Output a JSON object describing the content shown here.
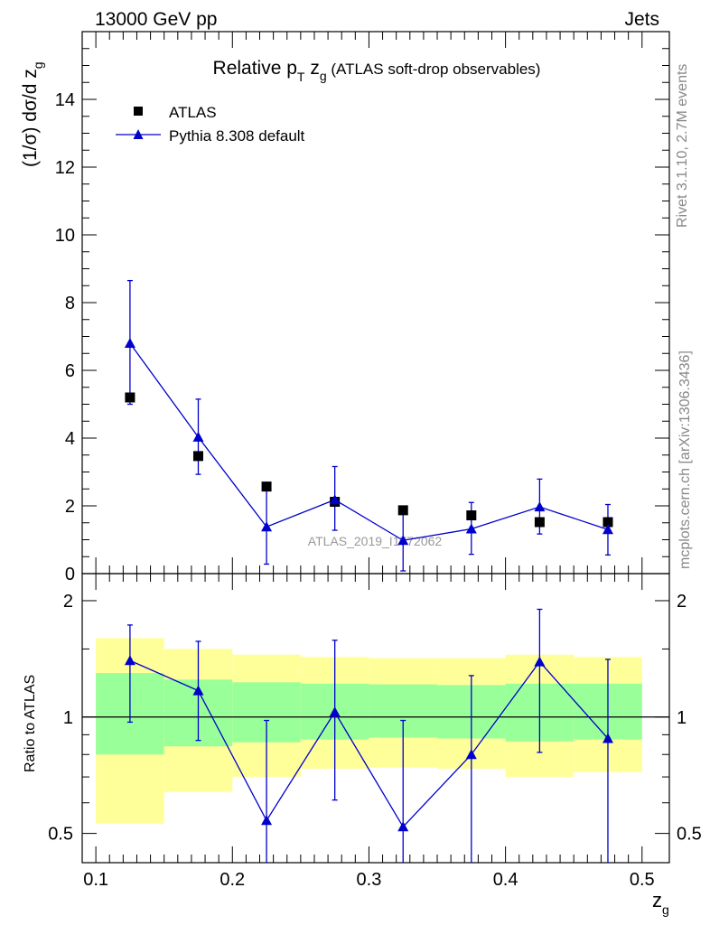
{
  "header": {
    "left": "13000 GeV pp",
    "right": "Jets"
  },
  "sidebar": {
    "rivet": "Rivet 3.1.10,  2.7M events",
    "mcplots": "mcplots.cern.ch [arXiv:1306.3436]"
  },
  "plot_title": {
    "prefix": "Relative p",
    "sub_t": "T",
    "mid": " z",
    "sub_g": "g",
    "suffix": " (ATLAS soft-drop observables)"
  },
  "watermark": "ATLAS_2019_I1772062",
  "colors": {
    "mc": "#0000cc",
    "data": "#000000",
    "band_inner": "#99ff99",
    "band_outer": "#ffff99"
  },
  "chart_data": [
    {
      "type": "scatter",
      "panel": "main",
      "ylabel_parts": [
        "(1/σ) dσ/d z",
        "g"
      ],
      "ylim": [
        0,
        16
      ],
      "xlim": [
        0.09,
        0.52
      ],
      "yticks": [
        0,
        2,
        4,
        6,
        8,
        10,
        12,
        14
      ],
      "legend_position": "top-left",
      "series": [
        {
          "name": "ATLAS",
          "marker": "square",
          "x": [
            0.125,
            0.175,
            0.225,
            0.275,
            0.325,
            0.375,
            0.425,
            0.475
          ],
          "y": [
            5.2,
            3.47,
            2.57,
            2.12,
            1.87,
            1.72,
            1.52,
            1.52
          ]
        },
        {
          "name": "Pythia 8.308 default",
          "marker": "triangle",
          "line": true,
          "x": [
            0.125,
            0.175,
            0.225,
            0.275,
            0.325,
            0.375,
            0.425,
            0.475
          ],
          "y": [
            6.8,
            4.03,
            1.38,
            2.18,
            0.98,
            1.32,
            1.97,
            1.3
          ],
          "err_low": [
            1.8,
            1.1,
            1.1,
            0.9,
            0.9,
            0.75,
            0.8,
            0.75
          ],
          "err_high": [
            1.85,
            1.12,
            1.1,
            0.98,
            0.9,
            0.78,
            0.82,
            0.74
          ]
        }
      ]
    },
    {
      "type": "scatter",
      "panel": "ratio",
      "ylabel": "Ratio to ATLAS",
      "xlabel_parts": [
        "z",
        "g"
      ],
      "log_y": true,
      "ylim": [
        0.42,
        2.35
      ],
      "xlim": [
        0.09,
        0.52
      ],
      "xticks": [
        0.1,
        0.2,
        0.3,
        0.4,
        0.5
      ],
      "xtick_labels": [
        "0.1",
        "0.2",
        "0.3",
        "0.4",
        "0.5"
      ],
      "yticks_labeled": [
        0.5,
        1,
        2
      ],
      "ytick_labels": [
        "0.5",
        "1",
        "2"
      ],
      "bands": [
        {
          "edges": [
            0.1,
            0.15,
            0.2,
            0.25,
            0.3,
            0.35,
            0.4,
            0.45,
            0.5
          ],
          "inner_low": [
            0.8,
            0.84,
            0.86,
            0.875,
            0.885,
            0.88,
            0.865,
            0.875
          ],
          "inner_high": [
            1.3,
            1.25,
            1.23,
            1.22,
            1.215,
            1.21,
            1.22,
            1.22
          ],
          "outer_low": [
            0.53,
            0.64,
            0.7,
            0.735,
            0.74,
            0.735,
            0.7,
            0.72
          ],
          "outer_high": [
            1.6,
            1.5,
            1.45,
            1.43,
            1.42,
            1.42,
            1.45,
            1.43
          ]
        }
      ],
      "series": [
        {
          "name": "Pythia 8.308 default",
          "x": [
            0.125,
            0.175,
            0.225,
            0.275,
            0.325,
            0.375,
            0.425,
            0.475
          ],
          "y": [
            1.4,
            1.17,
            0.54,
            1.03,
            0.52,
            0.8,
            1.39,
            0.88
          ],
          "err_low": [
            0.43,
            0.3,
            0.35,
            0.42,
            0.35,
            0.4,
            0.58,
            0.5
          ],
          "err_high": [
            0.33,
            0.4,
            0.44,
            0.55,
            0.46,
            0.48,
            0.51,
            0.53
          ]
        }
      ]
    }
  ]
}
